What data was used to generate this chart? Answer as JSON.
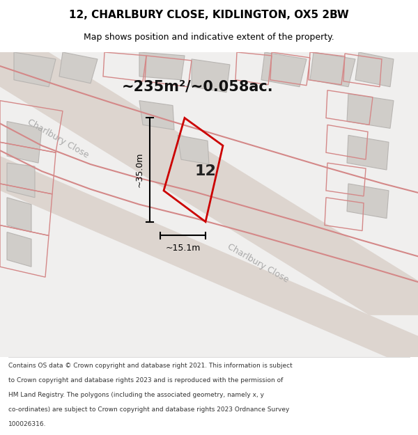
{
  "title": "12, CHARLBURY CLOSE, KIDLINGTON, OX5 2BW",
  "subtitle": "Map shows position and indicative extent of the property.",
  "area_text": "~235m²/~0.058ac.",
  "width_label": "~15.1m",
  "height_label": "~35.0m",
  "number_label": "12",
  "footer_lines": [
    "Contains OS data © Crown copyright and database right 2021. This information is subject",
    "to Crown copyright and database rights 2023 and is reproduced with the permission of",
    "HM Land Registry. The polygons (including the associated geometry, namely x, y",
    "co-ordinates) are subject to Crown copyright and database rights 2023 Ordnance Survey",
    "100026316."
  ],
  "map_bg": "#f0efee",
  "road_fill": "#ddd5cf",
  "building_fill": "#d0cdc9",
  "building_edge": "#b8b5b2",
  "outline_color": "#d48888",
  "plot_color": "#cc0000",
  "dim_color": "#000000",
  "title_color": "#000000",
  "footer_color": "#333333",
  "road_label_color": "#aaaaaa",
  "number_color": "#222222"
}
